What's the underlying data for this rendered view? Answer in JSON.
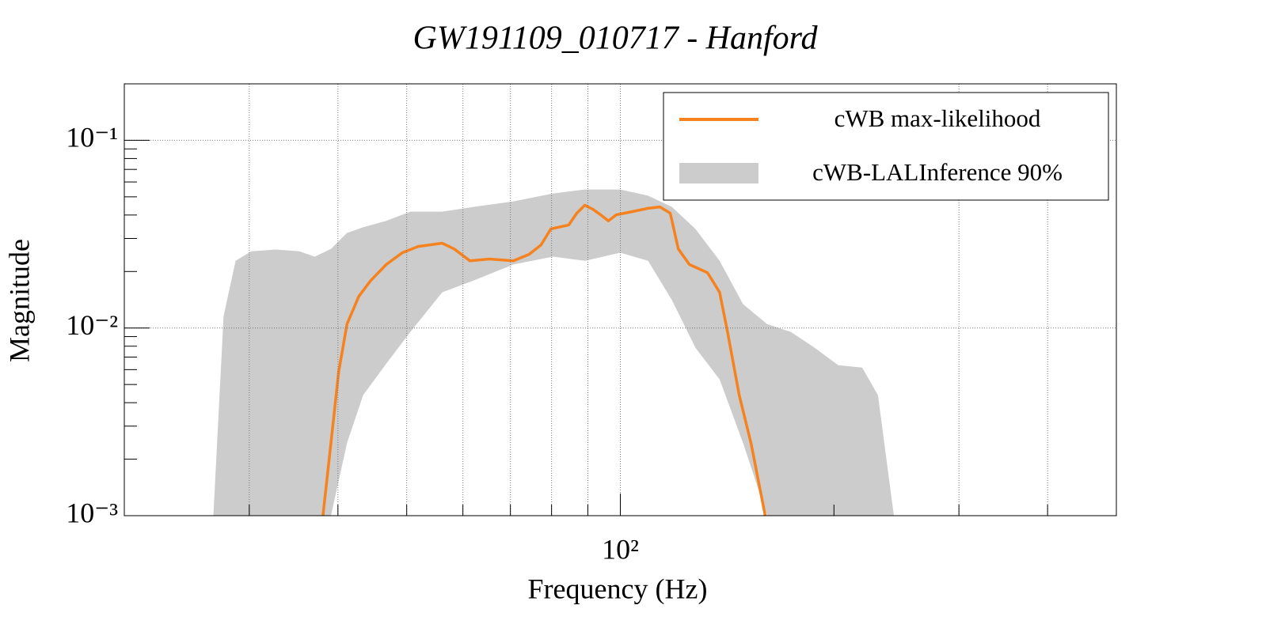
{
  "chart_data": {
    "type": "line",
    "title": "GW191109_010717 - Hanford",
    "x_label": "Frequency (Hz)",
    "y_label": "Magnitude",
    "xscale": "log",
    "yscale": "log",
    "grid": true,
    "legend": "top-right",
    "xlim": [
      20,
      500
    ],
    "ylim": [
      0.001,
      0.2
    ],
    "xticks": [
      {
        "value": 100,
        "label": "10²"
      }
    ],
    "xgrid": [
      30,
      40,
      50,
      60,
      70,
      80,
      90,
      100,
      300,
      400
    ],
    "yticks": [
      {
        "value": 0.001,
        "label": "10⁻³"
      },
      {
        "value": 0.01,
        "label": "10⁻²"
      },
      {
        "value": 0.1,
        "label": "10⁻¹"
      }
    ],
    "series": [
      {
        "name": "cWB max-likelihood",
        "color": "#f5821f",
        "x": [
          38.1,
          39.1,
          40.1,
          41.2,
          42.8,
          44.5,
          46.8,
          49.3,
          51.9,
          56.1,
          58.3,
          61.4,
          65.4,
          70.7,
          74.4,
          77.3,
          79.8,
          84.6,
          86.8,
          89.1,
          91.4,
          93.8,
          96.2,
          98.7,
          103.9,
          109.4,
          113.7,
          117.6,
          120.7,
          125.1,
          132.7,
          138.0,
          141.6,
          147.1,
          152.8,
          160.0
        ],
        "values": [
          0.001,
          0.00244,
          0.00586,
          0.0105,
          0.01475,
          0.0179,
          0.0218,
          0.0252,
          0.0272,
          0.0283,
          0.0264,
          0.0228,
          0.0233,
          0.0228,
          0.0247,
          0.0277,
          0.0337,
          0.0354,
          0.0409,
          0.0451,
          0.043,
          0.0401,
          0.0372,
          0.0401,
          0.0417,
          0.0434,
          0.0442,
          0.0409,
          0.0264,
          0.0218,
          0.0197,
          0.0155,
          0.00953,
          0.00438,
          0.00244,
          0.001
        ]
      },
      {
        "name": "cWB-LALInference 90%",
        "color": "#cccccc",
        "x": [
          26.7,
          27.6,
          28.7,
          30.2,
          32.7,
          35.3,
          37.1,
          39.1,
          41.2,
          43.4,
          46.8,
          50.6,
          56.1,
          62.1,
          70.7,
          80.4,
          89.1,
          100,
          109.4,
          118.2,
          127.6,
          138.0,
          148.9,
          161.0,
          173.9,
          187.9,
          202.8,
          219.2,
          230.7,
          242.9
        ],
        "upper": [
          0.001,
          0.01157,
          0.0228,
          0.0256,
          0.0262,
          0.0256,
          0.024,
          0.0264,
          0.0321,
          0.0344,
          0.0372,
          0.0417,
          0.0417,
          0.0442,
          0.0473,
          0.0521,
          0.0547,
          0.0547,
          0.0507,
          0.0442,
          0.0337,
          0.0228,
          0.0134,
          0.0105,
          0.00953,
          0.00785,
          0.00634,
          0.00615,
          0.00438,
          0.001
        ],
        "lower": [
          0.001,
          0.001,
          0.001,
          0.001,
          0.001,
          0.001,
          0.001,
          0.001,
          0.00244,
          0.00438,
          0.00646,
          0.00953,
          0.0155,
          0.0179,
          0.0218,
          0.024,
          0.0228,
          0.0252,
          0.0228,
          0.0141,
          0.00785,
          0.00532,
          0.00244,
          0.001,
          0.001,
          0.001,
          0.001,
          0.001,
          0.001,
          0.001
        ]
      }
    ]
  }
}
